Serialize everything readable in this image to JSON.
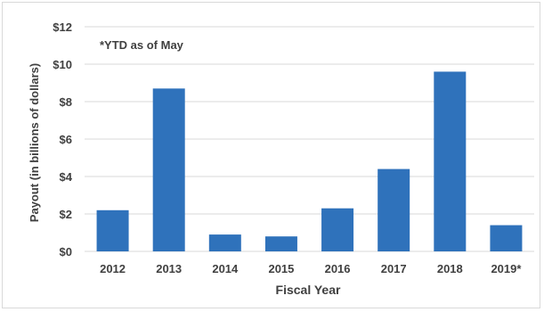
{
  "chart_data": {
    "type": "bar",
    "title": "",
    "annotation": "*YTD as of May",
    "xlabel": "Fiscal Year",
    "ylabel": "Payout (in billions of dollars)",
    "categories": [
      "2012",
      "2013",
      "2014",
      "2015",
      "2016",
      "2017",
      "2018",
      "2019*"
    ],
    "values": [
      2.2,
      8.7,
      0.9,
      0.8,
      2.3,
      4.4,
      9.6,
      1.4
    ],
    "ylim": [
      0,
      12
    ],
    "yticks": [
      0,
      2,
      4,
      6,
      8,
      10,
      12
    ],
    "ytick_labels": [
      "$0",
      "$2",
      "$4",
      "$6",
      "$8",
      "$10",
      "$12"
    ],
    "grid": "horizontal",
    "legend": "none",
    "bar_color": "#2f72bb",
    "grid_color": "#d9d9d9"
  }
}
